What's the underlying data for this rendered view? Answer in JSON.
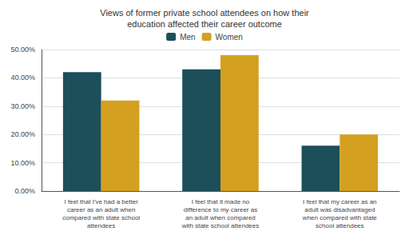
{
  "chart_data": {
    "type": "bar",
    "title": "Views of former private school attendees on how their\neducation affected their career outcome",
    "categories": [
      "I feel that I've had a better\ncareer as an adult when\ncompared with state school\nattendees",
      "I feel that it made no\ndifference to my career as\nan adult when compared\nwith state school attendees",
      "I feel that my career as an\nadult was disadvantaged\nwhen compared with state\nschool attendees"
    ],
    "series": [
      {
        "name": "Men",
        "color": "#1c4f5a",
        "values": [
          0.42,
          0.43,
          0.16
        ]
      },
      {
        "name": "Women",
        "color": "#d4a020",
        "values": [
          0.32,
          0.48,
          0.2
        ]
      }
    ],
    "ylim": [
      0,
      0.5
    ],
    "yticks": [
      {
        "value": 0.0,
        "label": "0.00%"
      },
      {
        "value": 0.1,
        "label": "10.00%"
      },
      {
        "value": 0.2,
        "label": "20.00%"
      },
      {
        "value": 0.3,
        "label": "30.00%"
      },
      {
        "value": 0.4,
        "label": "40.00%"
      },
      {
        "value": 0.5,
        "label": "50.00%"
      }
    ],
    "grid": true,
    "legend": "top"
  }
}
